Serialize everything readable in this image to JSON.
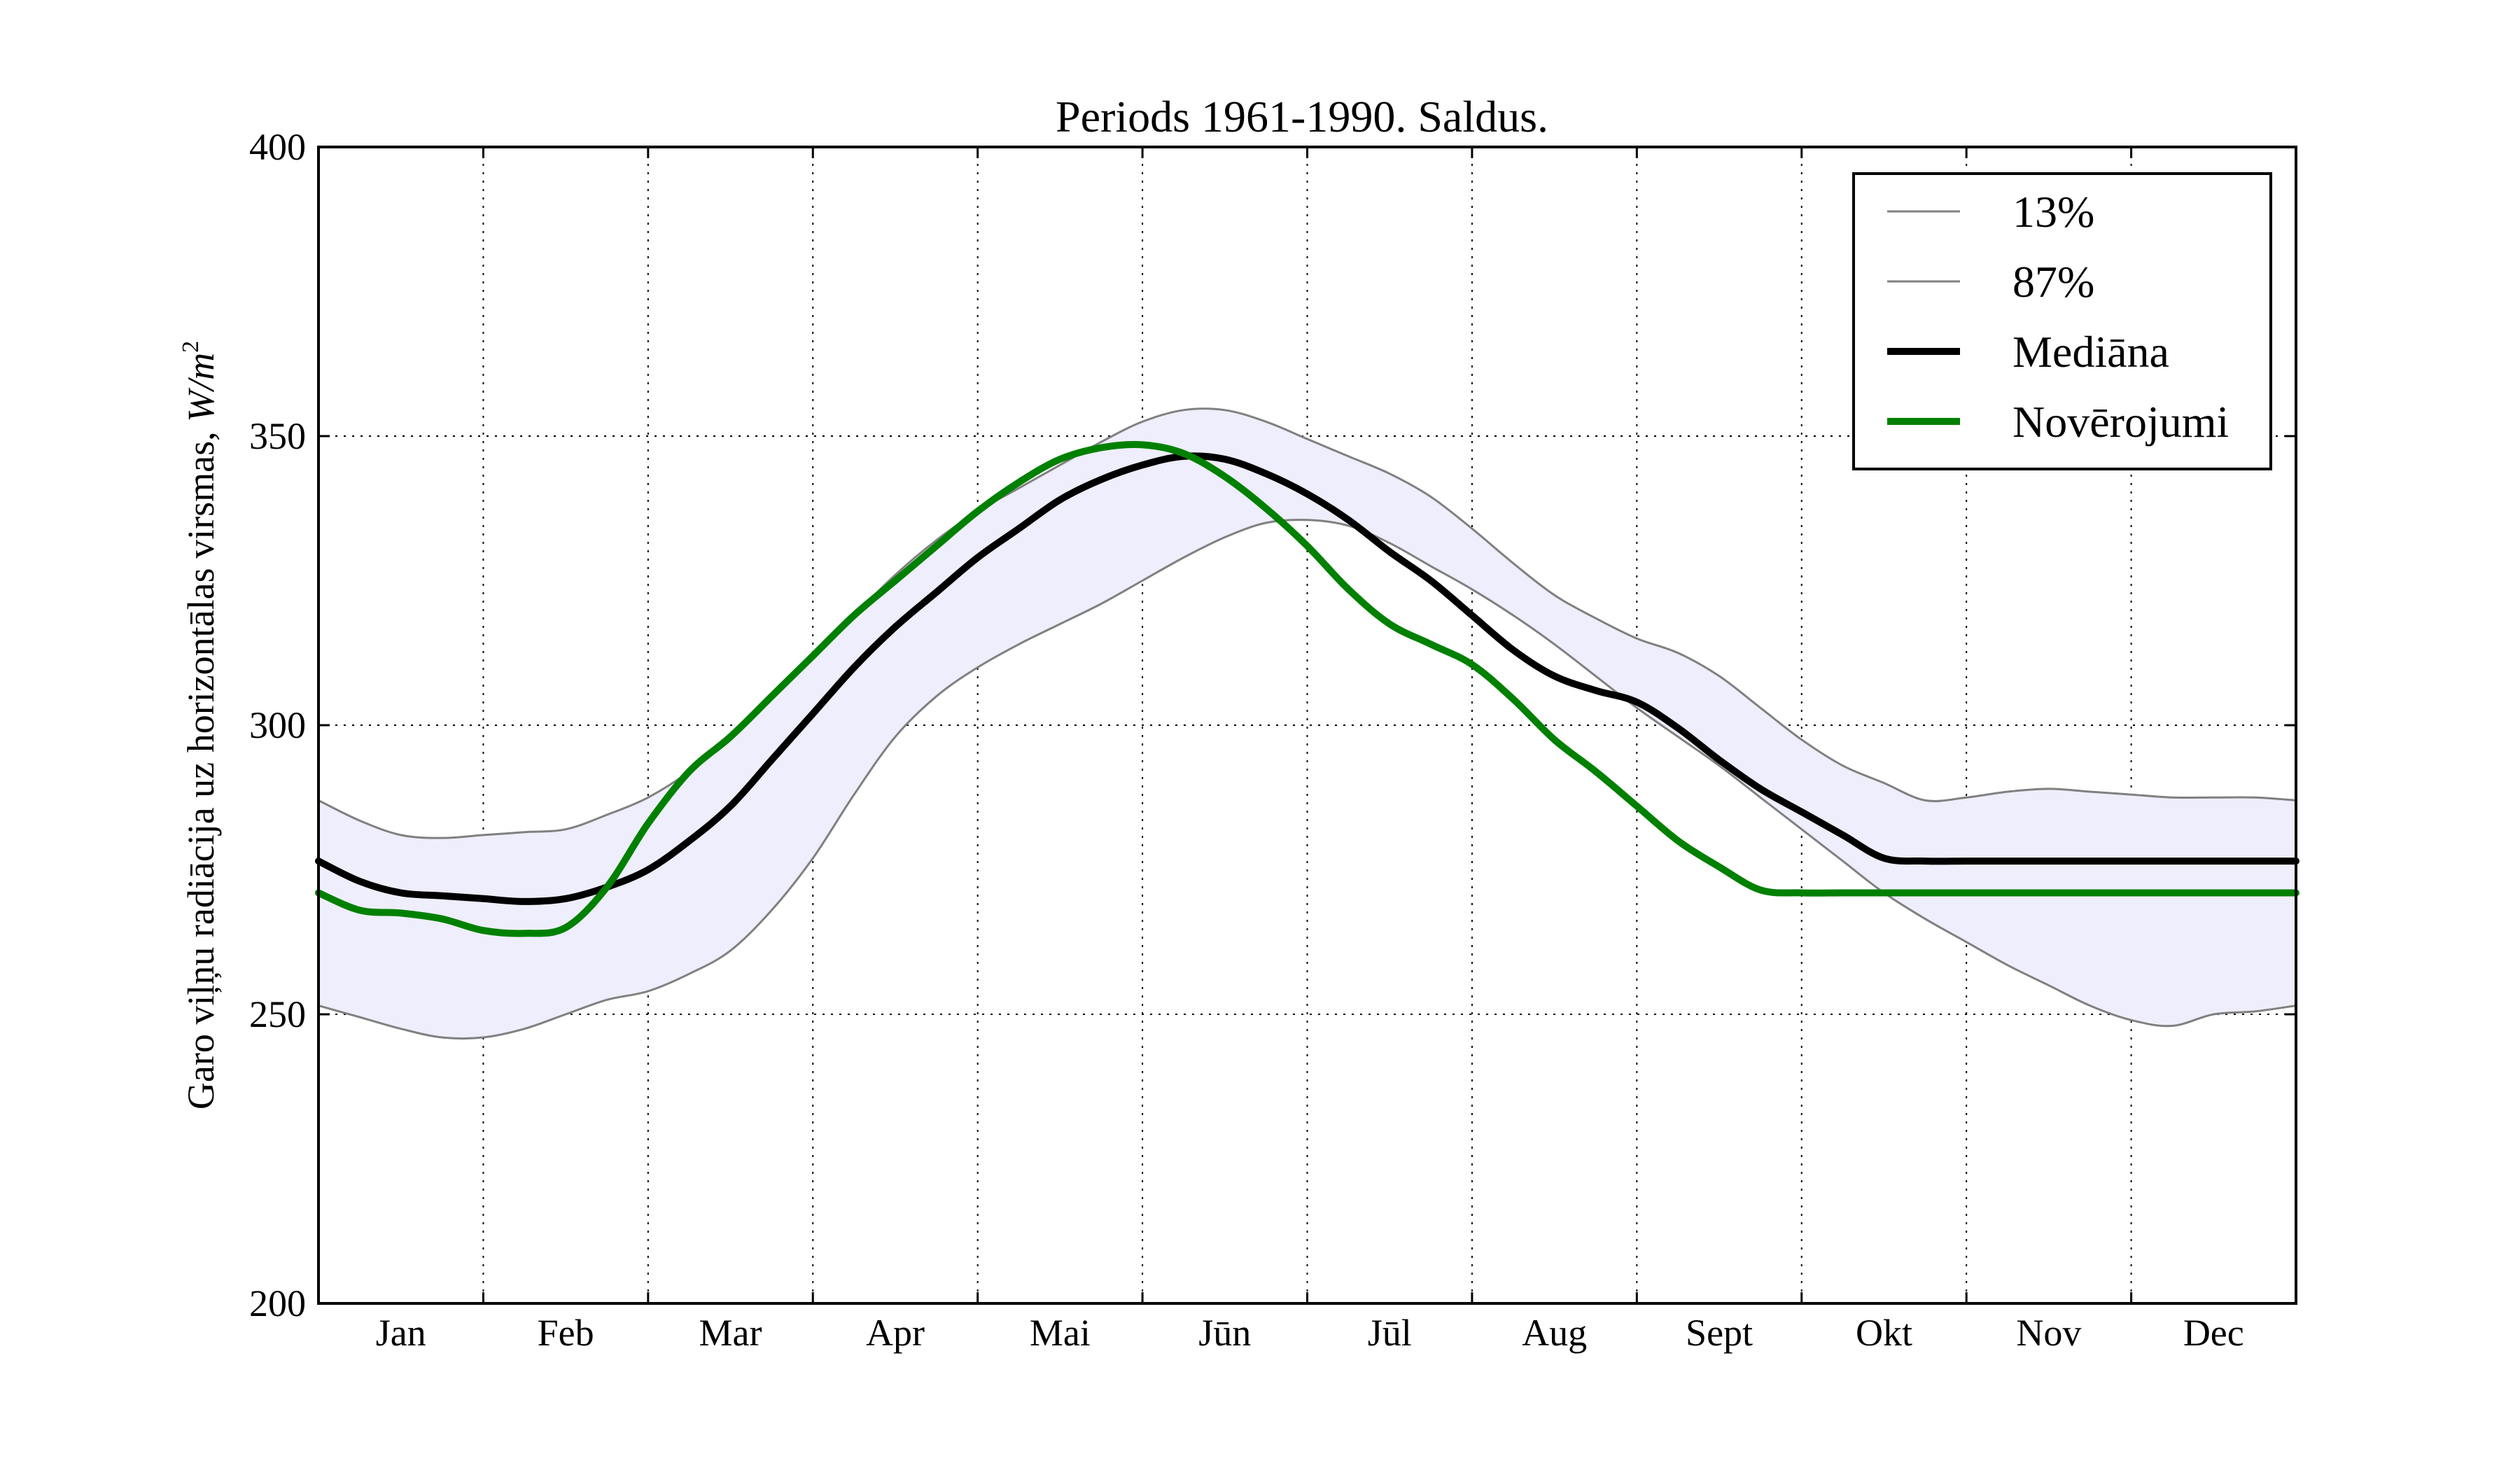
{
  "chart_data": {
    "type": "line",
    "title": "Periods 1961-1990. Saldus.",
    "ylabel_text": "Garo viļņu radiācija uz horizontālas virsmas, ",
    "ylabel_unit": "W/m",
    "ylabel_unit_sup": "2",
    "ylim": [
      200,
      400
    ],
    "yticks": [
      "200",
      "250",
      "300",
      "350",
      "400"
    ],
    "ytick_values": [
      200,
      250,
      300,
      350,
      400
    ],
    "xlim": [
      0,
      12
    ],
    "months": [
      "Jan",
      "Feb",
      "Mar",
      "Apr",
      "Mai",
      "Jūn",
      "Jūl",
      "Aug",
      "Sept",
      "Okt",
      "Nov",
      "Dec"
    ],
    "grid": true,
    "legend_position": "top-right",
    "band_fill_color": "#eeeefc",
    "series": [
      {
        "name": "13%",
        "color": "#808080",
        "x": [
          0,
          0.25,
          0.5,
          0.75,
          1,
          1.25,
          1.5,
          1.75,
          2,
          2.25,
          2.5,
          2.75,
          3,
          3.25,
          3.5,
          3.75,
          4,
          4.25,
          4.5,
          4.75,
          5,
          5.25,
          5.5,
          5.75,
          6,
          6.25,
          6.5,
          6.75,
          7,
          7.25,
          7.5,
          7.75,
          8,
          8.25,
          8.5,
          8.75,
          9,
          9.25,
          9.5,
          9.75,
          10,
          10.25,
          10.5,
          10.75,
          11,
          11.25,
          11.5,
          11.75,
          12
        ],
        "values": [
          251.5,
          249.5,
          247.5,
          246,
          246,
          247.5,
          250,
          252.5,
          254,
          257,
          261,
          268,
          277,
          288,
          298,
          305,
          310,
          314,
          317.5,
          321,
          325,
          329,
          332.5,
          335,
          335.5,
          334.5,
          331.5,
          327.5,
          323.5,
          319,
          314,
          308.5,
          303,
          298,
          293,
          287.5,
          282,
          276.5,
          271,
          266.5,
          262.5,
          258.5,
          255,
          251.5,
          249,
          248,
          250,
          250.5,
          251.5
        ]
      },
      {
        "name": "87%",
        "color": "#808080",
        "x": [
          0,
          0.25,
          0.5,
          0.75,
          1,
          1.25,
          1.5,
          1.75,
          2,
          2.25,
          2.5,
          2.75,
          3,
          3.25,
          3.5,
          3.75,
          4,
          4.25,
          4.5,
          4.75,
          5,
          5.25,
          5.5,
          5.75,
          6,
          6.25,
          6.5,
          6.75,
          7,
          7.25,
          7.5,
          7.75,
          8,
          8.25,
          8.5,
          8.75,
          9,
          9.25,
          9.5,
          9.75,
          10,
          10.25,
          10.5,
          10.75,
          11,
          11.25,
          11.5,
          11.75,
          12
        ],
        "values": [
          287,
          283.5,
          281,
          280.5,
          281,
          281.5,
          282,
          284.5,
          287.5,
          292,
          298,
          305,
          312,
          319,
          326,
          332,
          337,
          341,
          345,
          349,
          352.5,
          354.5,
          354.5,
          352.5,
          349.5,
          346.5,
          343.5,
          339.5,
          334,
          328,
          322.5,
          318.5,
          315,
          312.5,
          308.5,
          303,
          297.5,
          293,
          290,
          287,
          287.5,
          288.5,
          289,
          288.5,
          288,
          287.5,
          287.5,
          287.5,
          287
        ]
      },
      {
        "name": "Mediāna",
        "color": "#000000",
        "x": [
          0,
          0.25,
          0.5,
          0.75,
          1,
          1.25,
          1.5,
          1.75,
          2,
          2.25,
          2.5,
          2.75,
          3,
          3.25,
          3.5,
          3.75,
          4,
          4.25,
          4.5,
          4.75,
          5,
          5.25,
          5.5,
          5.75,
          6,
          6.25,
          6.5,
          6.75,
          7,
          7.25,
          7.5,
          7.75,
          8,
          8.25,
          8.5,
          8.75,
          9,
          9.25,
          9.5,
          9.75,
          10,
          10.25,
          10.5,
          10.75,
          11,
          11.25,
          11.5,
          11.75,
          12
        ],
        "values": [
          276.5,
          273,
          271,
          270.5,
          270,
          269.5,
          270,
          272,
          275,
          280,
          286,
          294,
          302,
          310,
          317,
          323,
          329,
          334,
          339,
          342.5,
          345,
          346.5,
          346,
          343.5,
          340,
          335.5,
          330,
          325,
          319,
          313,
          308.5,
          306,
          304,
          299.5,
          294,
          289,
          285,
          281,
          277,
          276.5,
          276.5,
          276.5,
          276.5,
          276.5,
          276.5,
          276.5,
          276.5,
          276.5,
          276.5
        ]
      },
      {
        "name": "Novērojumi",
        "color": "#008000",
        "x": [
          0,
          0.25,
          0.5,
          0.75,
          1,
          1.25,
          1.5,
          1.75,
          2,
          2.25,
          2.5,
          2.75,
          3,
          3.25,
          3.5,
          3.75,
          4,
          4.25,
          4.5,
          4.75,
          5,
          5.25,
          5.5,
          5.75,
          6,
          6.25,
          6.5,
          6.75,
          7,
          7.25,
          7.5,
          7.75,
          8,
          8.25,
          8.5,
          8.75,
          9,
          9.25,
          9.5,
          9.75,
          10,
          10.25,
          10.5,
          10.75,
          11,
          11.25,
          11.5,
          11.75,
          12
        ],
        "values": [
          271,
          268,
          267.5,
          266.5,
          264.5,
          264,
          265,
          272,
          283,
          292,
          298,
          305,
          312,
          319,
          325,
          331,
          337,
          342,
          346,
          348,
          348.5,
          347,
          343,
          337.5,
          331,
          323.5,
          317.5,
          314,
          310.5,
          304.5,
          297.5,
          292,
          286,
          280,
          275.5,
          271.5,
          271,
          271,
          271,
          271,
          271,
          271,
          271,
          271,
          271,
          271,
          271,
          271,
          271
        ]
      }
    ]
  }
}
